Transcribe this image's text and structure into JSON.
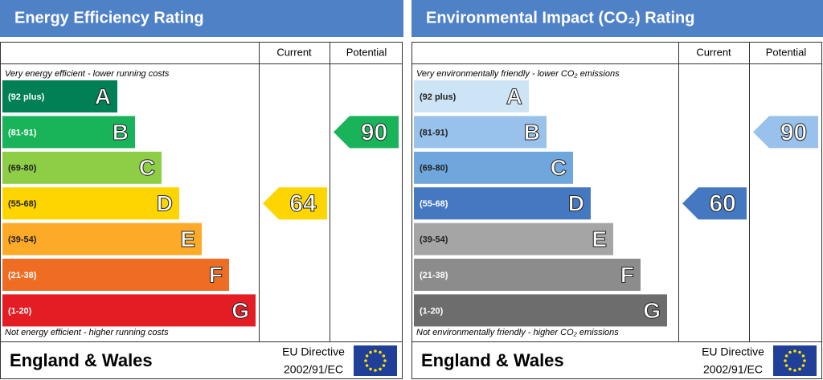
{
  "panels": [
    {
      "title": "Energy Efficiency Rating",
      "columns": [
        "Current",
        "Potential"
      ],
      "top_note": "Very energy efficient - lower running costs",
      "bottom_note": "Not energy efficient - higher running costs",
      "bands": [
        {
          "range": "(92 plus)",
          "letter": "A",
          "color": "#008054"
        },
        {
          "range": "(81-91)",
          "letter": "B",
          "color": "#19b459"
        },
        {
          "range": "(69-80)",
          "letter": "C",
          "color": "#8dce46"
        },
        {
          "range": "(55-68)",
          "letter": "D",
          "color": "#ffd500"
        },
        {
          "range": "(39-54)",
          "letter": "E",
          "color": "#fcaa27"
        },
        {
          "range": "(21-38)",
          "letter": "F",
          "color": "#ef6c23"
        },
        {
          "range": "(1-20)",
          "letter": "G",
          "color": "#e31d23"
        }
      ],
      "current": 64,
      "potential": 90,
      "footer": {
        "region": "England & Wales",
        "directive": "EU Directive",
        "code": "2002/91/EC"
      }
    },
    {
      "title": "Environmental Impact (CO₂) Rating",
      "columns": [
        "Current",
        "Potential"
      ],
      "top_note": "Very environmentally friendly - lower CO₂ emissions",
      "bottom_note": "Not environmentally friendly - higher CO₂ emissions",
      "bands": [
        {
          "range": "(92 plus)",
          "letter": "A",
          "color": "#cde3f6"
        },
        {
          "range": "(81-91)",
          "letter": "B",
          "color": "#98c1ec"
        },
        {
          "range": "(69-80)",
          "letter": "C",
          "color": "#6fa6dc"
        },
        {
          "range": "(55-68)",
          "letter": "D",
          "color": "#4478c0"
        },
        {
          "range": "(39-54)",
          "letter": "E",
          "color": "#a5a5a5"
        },
        {
          "range": "(21-38)",
          "letter": "F",
          "color": "#8c8c8c"
        },
        {
          "range": "(1-20)",
          "letter": "G",
          "color": "#6d6d6d"
        }
      ],
      "current": 60,
      "potential": 90,
      "footer": {
        "region": "England & Wales",
        "directive": "EU Directive",
        "code": "2002/91/EC"
      }
    }
  ]
}
